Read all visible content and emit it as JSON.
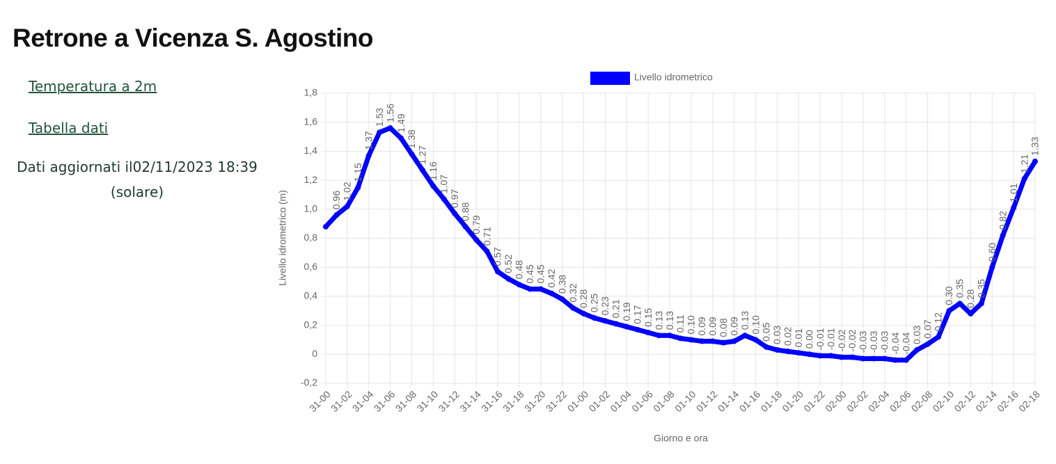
{
  "header": {
    "title": "Retrone a Vicenza S. Agostino"
  },
  "links": [
    "Temperatura a 2m",
    "Tabella dati"
  ],
  "updated": "Dati aggiornati il02/11/2023 18:39 (solare)",
  "chart_data": {
    "type": "line",
    "x_label": "Giorno e ora",
    "y_label": "Livello idrometrico (m)",
    "legend": "top",
    "grid": true,
    "categories": [
      "31-00",
      null,
      "31-02",
      null,
      "31-04",
      null,
      "31-06",
      null,
      "31-08",
      null,
      "31-10",
      null,
      "31-12",
      null,
      "31-14",
      null,
      "31-16",
      null,
      "31-18",
      null,
      "31-20",
      null,
      "31-22",
      null,
      "01-00",
      null,
      "01-02",
      null,
      "01-04",
      null,
      "01-06",
      null,
      "01-08",
      null,
      "01-10",
      null,
      "01-12",
      null,
      "01-14",
      null,
      "01-16",
      null,
      "01-18",
      null,
      "01-20",
      null,
      "01-22",
      null,
      "02-00",
      null,
      "02-02",
      null,
      "02-04",
      null,
      "02-06",
      null,
      "02-08",
      null,
      "02-10",
      null,
      "02-12",
      null,
      "02-14",
      null,
      "02-16",
      null,
      "02-18"
    ],
    "series": [
      {
        "name": "Livello idrometrico",
        "color": "#0000ff",
        "values": [
          0.88,
          0.96,
          1.02,
          1.15,
          1.37,
          1.53,
          1.56,
          1.49,
          1.38,
          1.27,
          1.16,
          1.07,
          0.97,
          0.88,
          0.79,
          0.71,
          0.57,
          0.52,
          0.48,
          0.45,
          0.45,
          0.42,
          0.38,
          0.32,
          0.28,
          0.25,
          0.23,
          0.21,
          0.19,
          0.17,
          0.15,
          0.13,
          0.13,
          0.11,
          0.1,
          0.09,
          0.09,
          0.08,
          0.09,
          0.13,
          0.1,
          0.05,
          0.03,
          0.02,
          0.01,
          0.0,
          -0.01,
          -0.01,
          -0.02,
          -0.02,
          -0.03,
          -0.03,
          -0.03,
          -0.04,
          -0.04,
          0.03,
          0.07,
          0.12,
          0.3,
          0.35,
          0.28,
          0.35,
          0.6,
          0.82,
          1.01,
          1.21,
          1.33
        ],
        "value_labels": [
          null,
          "0.96",
          "1.02",
          "1.15",
          "1.37",
          "1.53",
          "1.56",
          "1.49",
          "1.38",
          "1.27",
          "1.16",
          "1.07",
          "0.97",
          "0.88",
          "0.79",
          "0.71",
          "0.57",
          "0.52",
          "0.48",
          "0.45",
          "0.45",
          "0.42",
          "0.38",
          "0.32",
          "0.28",
          "0.25",
          "0.23",
          "0.21",
          "0.19",
          "0.17",
          "0.15",
          "0.13",
          "0.13",
          "0.11",
          "0.10",
          "0.09",
          "0.09",
          "0.08",
          "0.09",
          "0.13",
          "0.10",
          "0.05",
          "0.03",
          "0.02",
          "0.01",
          "0.00",
          "-0.01",
          "-0.01",
          "-0.02",
          "-0.02",
          "-0.03",
          "-0.03",
          "-0.03",
          "-0.04",
          "-0.04",
          "0.03",
          "0.07",
          "0.12",
          "0.30",
          "0.35",
          "0.28",
          "0.35",
          "0.60",
          "0.82",
          "1.01",
          "1.21",
          "1.33"
        ]
      }
    ],
    "ylim": [
      -0.2,
      1.8
    ],
    "yticks": [
      {
        "value": -0.2,
        "label": "-0,2"
      },
      0,
      {
        "value": 0.2,
        "label": "0,2"
      },
      {
        "value": 0.4,
        "label": "0,4"
      },
      {
        "value": 0.6,
        "label": "0,6"
      },
      {
        "value": 0.8,
        "label": "0,8"
      },
      {
        "value": 1.0,
        "label": "1,0"
      },
      {
        "value": 1.2,
        "label": "1,2"
      },
      {
        "value": 1.4,
        "label": "1,4"
      },
      {
        "value": 1.6,
        "label": "1,6"
      },
      {
        "value": 1.8,
        "label": "1,8"
      }
    ]
  }
}
